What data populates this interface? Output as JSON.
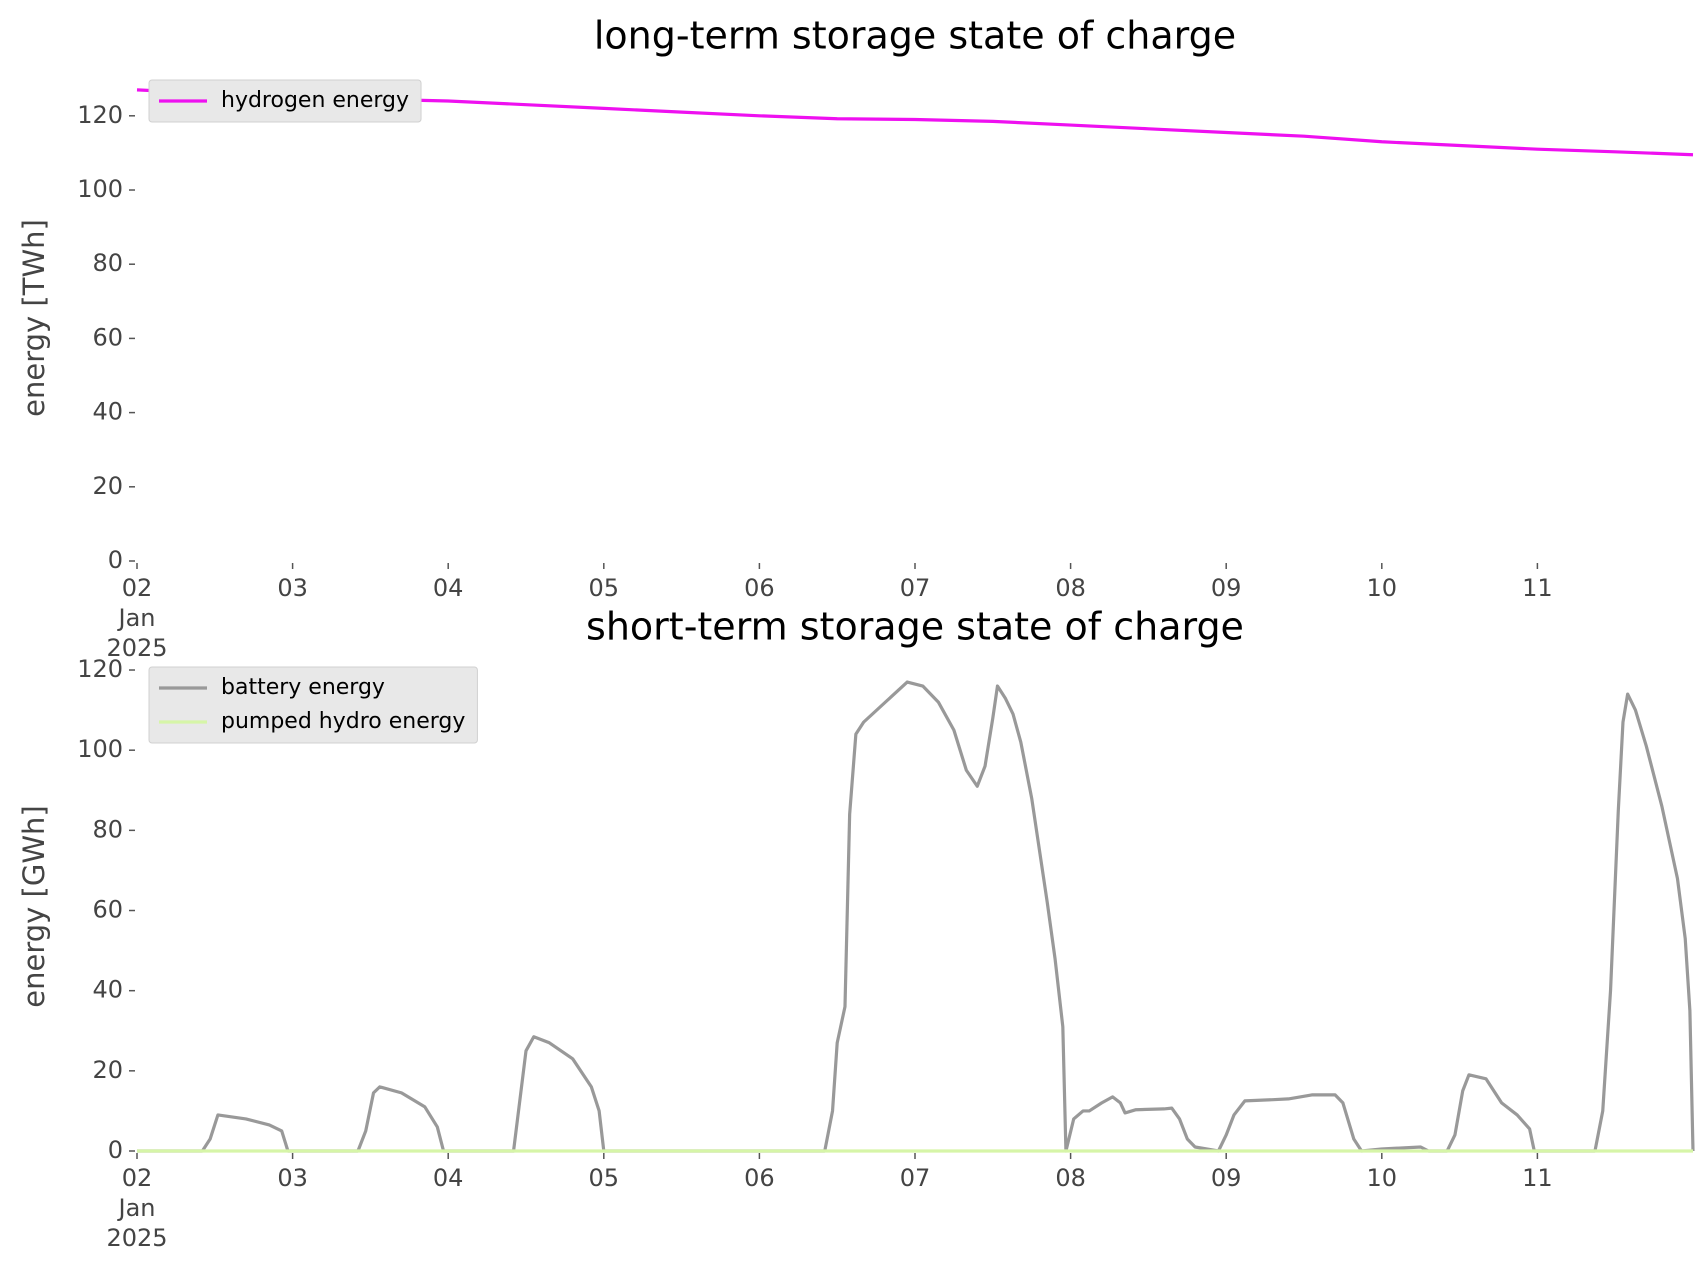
{
  "chart_data": [
    {
      "type": "line",
      "title": "long-term storage state of charge",
      "ylabel": "energy [TWh]",
      "xlim": [
        2,
        12
      ],
      "ylim": [
        0,
        131
      ],
      "xticks": [
        {
          "value": 2,
          "label": "02\nJan\n2025"
        },
        {
          "value": 3,
          "label": "03"
        },
        {
          "value": 4,
          "label": "04"
        },
        {
          "value": 5,
          "label": "05"
        },
        {
          "value": 6,
          "label": "06"
        },
        {
          "value": 7,
          "label": "07"
        },
        {
          "value": 8,
          "label": "08"
        },
        {
          "value": 9,
          "label": "09"
        },
        {
          "value": 10,
          "label": "10"
        },
        {
          "value": 11,
          "label": "11"
        }
      ],
      "yticks": [
        0,
        20,
        40,
        60,
        80,
        100,
        120
      ],
      "legend": "upper left",
      "series": [
        {
          "name": "hydrogen energy",
          "color": "#ee10f0",
          "x": [
            2,
            2.5,
            3,
            3.5,
            4,
            4.5,
            5,
            5.5,
            6,
            6.5,
            7,
            7.5,
            8,
            8.5,
            9,
            9.5,
            10,
            10.5,
            11,
            11.5,
            12
          ],
          "values": [
            127,
            126,
            125,
            124.5,
            124,
            123,
            122,
            121,
            120,
            119.2,
            119,
            118.5,
            117.5,
            116.5,
            115.5,
            114.5,
            113,
            112,
            111,
            110.3,
            109.5
          ]
        }
      ]
    },
    {
      "type": "line",
      "title": "short-term storage state of charge",
      "ylabel": "energy [GWh]",
      "xlim": [
        2,
        12
      ],
      "ylim": [
        0,
        122
      ],
      "xticks": [
        {
          "value": 2,
          "label": "02\nJan\n2025"
        },
        {
          "value": 3,
          "label": "03"
        },
        {
          "value": 4,
          "label": "04"
        },
        {
          "value": 5,
          "label": "05"
        },
        {
          "value": 6,
          "label": "06"
        },
        {
          "value": 7,
          "label": "07"
        },
        {
          "value": 8,
          "label": "08"
        },
        {
          "value": 9,
          "label": "09"
        },
        {
          "value": 10,
          "label": "10"
        },
        {
          "value": 11,
          "label": "11"
        }
      ],
      "yticks": [
        0,
        20,
        40,
        60,
        80,
        100,
        120
      ],
      "legend": "upper left",
      "series": [
        {
          "name": "battery energy",
          "color": "#999999",
          "x": [
            2,
            2.42,
            2.47,
            2.52,
            2.7,
            2.85,
            2.93,
            2.97,
            3.42,
            3.47,
            3.52,
            3.56,
            3.7,
            3.85,
            3.93,
            3.97,
            4.42,
            4.5,
            4.55,
            4.65,
            4.8,
            4.92,
            4.97,
            5,
            6.42,
            6.47,
            6.5,
            6.55,
            6.58,
            6.62,
            6.67,
            6.95,
            7.05,
            7.15,
            7.25,
            7.33,
            7.4,
            7.45,
            7.5,
            7.53,
            7.58,
            7.63,
            7.68,
            7.75,
            7.85,
            7.9,
            7.95,
            7.97,
            8.02,
            8.08,
            8.12,
            8.2,
            8.27,
            8.32,
            8.35,
            8.42,
            8.6,
            8.65,
            8.7,
            8.75,
            8.8,
            8.95,
            9,
            9.05,
            9.12,
            9.3,
            9.4,
            9.55,
            9.7,
            9.75,
            9.82,
            9.87,
            10,
            10.25,
            10.3,
            10.42,
            10.47,
            10.52,
            10.56,
            10.67,
            10.77,
            10.87,
            10.95,
            10.98,
            11.37,
            11.42,
            11.47,
            11.52,
            11.55,
            11.58,
            11.63,
            11.7,
            11.8,
            11.9,
            11.95,
            11.98,
            12
          ],
          "values": [
            0,
            0,
            3,
            9,
            8,
            6.5,
            5,
            0,
            0,
            5,
            14.5,
            16,
            14.5,
            11,
            6,
            0,
            0,
            25,
            28.5,
            27,
            23,
            16,
            10,
            0,
            0,
            10,
            27,
            36,
            84,
            104,
            107,
            117,
            116,
            112,
            105,
            95,
            91,
            96,
            108,
            116,
            113,
            109,
            102,
            88,
            62,
            48,
            31,
            0,
            8,
            10,
            10,
            12,
            13.5,
            12,
            9.5,
            10.3,
            10.5,
            10.7,
            8,
            3,
            1,
            0,
            4,
            9,
            12.5,
            12.8,
            13,
            14,
            14,
            12,
            3,
            0,
            0.5,
            1,
            0,
            0,
            4,
            15,
            19,
            18,
            12,
            9,
            5.5,
            0,
            0,
            10,
            40,
            85,
            107,
            114,
            110,
            101,
            86,
            68,
            53,
            35,
            0
          ]
        },
        {
          "name": "pumped hydro energy",
          "color": "#d6f5a8",
          "x": [
            2,
            12
          ],
          "values": [
            0,
            0
          ]
        }
      ]
    }
  ]
}
